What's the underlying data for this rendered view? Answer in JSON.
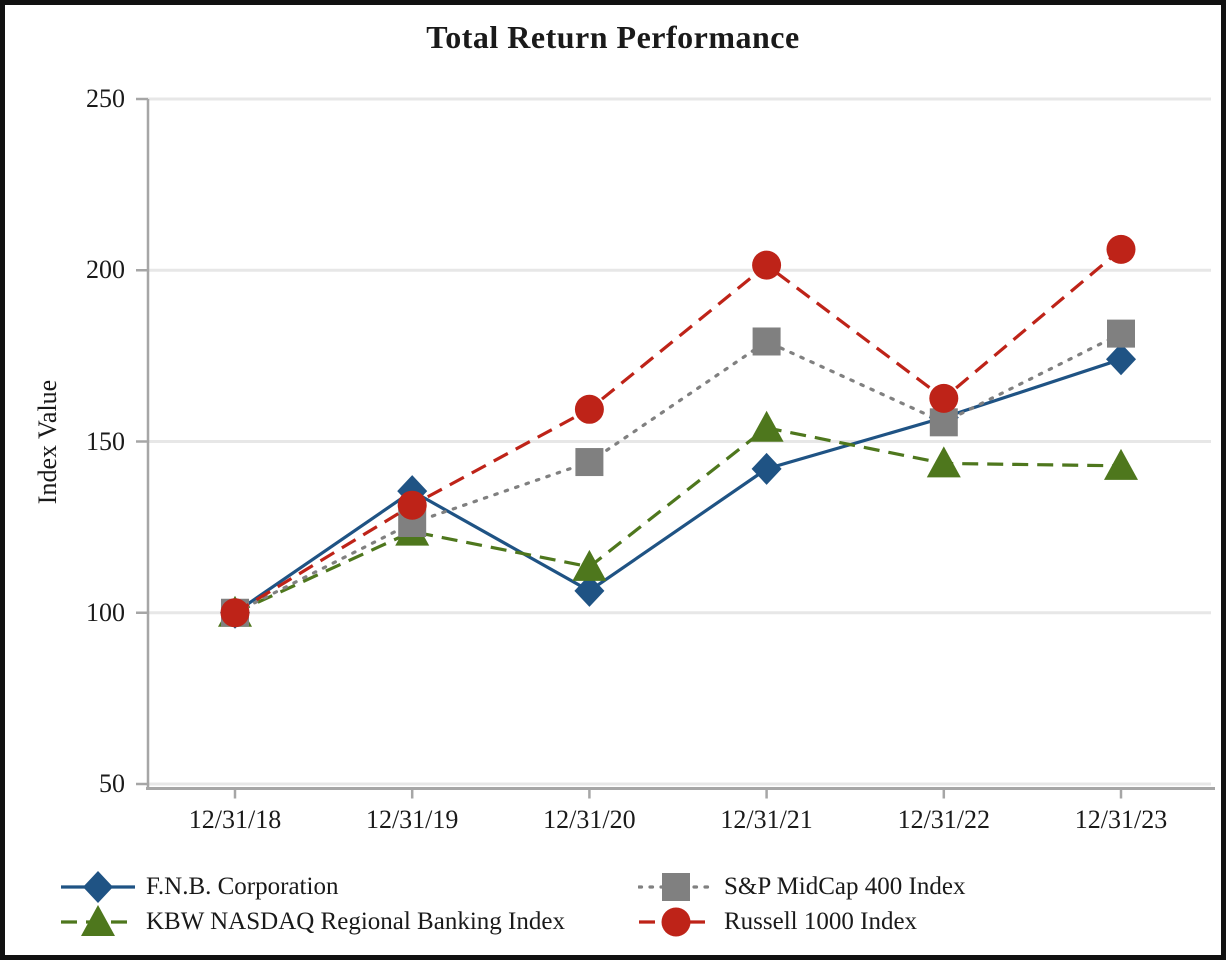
{
  "chart_data": {
    "type": "line",
    "title": "Total Return Performance",
    "xlabel": "",
    "ylabel": "Index Value",
    "categories": [
      "12/31/18",
      "12/31/19",
      "12/31/20",
      "12/31/21",
      "12/31/22",
      "12/31/23"
    ],
    "ylim": [
      50,
      250
    ],
    "yticks": [
      50,
      100,
      150,
      200,
      250
    ],
    "grid": true,
    "legend_position": "bottom",
    "colors": {
      "fnb_blue": "#1F5384",
      "kbw_green": "#4E771D",
      "midcap_gray": "#808080",
      "russell_red": "#BE2318",
      "gridline": "#E7E7E7",
      "axis": "#A6A6A6",
      "text": "#1A1A1A"
    },
    "series": [
      {
        "name": "F.N.B. Corporation",
        "color": "#1F5384",
        "marker": "diamond",
        "line_style": "solid",
        "values": [
          100,
          135.5,
          106.4,
          142.0,
          157.0,
          174.0
        ]
      },
      {
        "name": "KBW NASDAQ Regional Banking Index",
        "color": "#4E771D",
        "marker": "triangle",
        "line_style": "dashed",
        "values": [
          100,
          123.7,
          113.4,
          154.0,
          143.6,
          142.9
        ]
      },
      {
        "name": "S&P MidCap 400 Index",
        "color": "#808080",
        "marker": "square",
        "line_style": "dotted",
        "values": [
          100,
          126.2,
          144.0,
          179.2,
          155.6,
          181.5
        ]
      },
      {
        "name": "Russell 1000 Index",
        "color": "#BE2318",
        "marker": "circle",
        "line_style": "dashed",
        "values": [
          100,
          131.4,
          159.4,
          201.5,
          162.6,
          206.1
        ]
      }
    ]
  }
}
